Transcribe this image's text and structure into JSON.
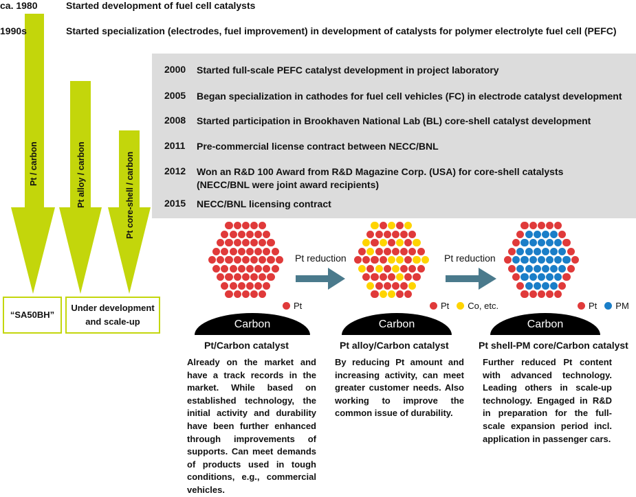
{
  "timeline_top": [
    {
      "year": "ca. 1980",
      "text": "Started development of fuel cell catalysts"
    },
    {
      "year": "1990s",
      "text": "Started specialization (electrodes, fuel improvement) in development of catalysts for polymer electrolyte fuel cell (PEFC)"
    }
  ],
  "timeline_box": [
    {
      "year": "2000",
      "text": "Started full-scale PEFC catalyst development in project laboratory"
    },
    {
      "year": "2005",
      "text": "Began specialization in cathodes for fuel cell vehicles (FC) in electrode catalyst development"
    },
    {
      "year": "2008",
      "text": "Started participation in Brookhaven National Lab (BL) core-shell catalyst development"
    },
    {
      "year": "2011",
      "text": "Pre-commercial license contract between NECC/BNL"
    },
    {
      "year": "2012",
      "text": "Won an R&D 100 Award from R&D Magazine Corp. (USA) for core-shell catalysts",
      "text2": "(NECC/BNL were joint award recipients)"
    },
    {
      "year": "2015",
      "text": "NECC/BNL licensing contract"
    }
  ],
  "arrows": [
    {
      "label": "Pt / carbon"
    },
    {
      "label": "Pt alloy / carbon"
    },
    {
      "label": "Pt core-shell / carbon"
    }
  ],
  "outcomes": [
    {
      "label": "“SA50BH”"
    },
    {
      "label_line1": "Under development",
      "label_line2": "and scale-up"
    }
  ],
  "flow": {
    "step_label_1": "Pt reduction",
    "step_label_2": "Pt reduction"
  },
  "catalysts": [
    {
      "title": "Pt/Carbon catalyst",
      "support": "Carbon",
      "legend": [
        {
          "label": "Pt",
          "color": "#e03a3a"
        }
      ],
      "description": "Already on the market and have a track records in the market. While based on established technology, the initial activity and durability have been further enhanced through improvements of supports. Can meet demands of products used in tough conditions, e.g., commercial vehicles."
    },
    {
      "title": "Pt alloy/Carbon catalyst",
      "support": "Carbon",
      "legend": [
        {
          "label": "Pt",
          "color": "#e03a3a"
        },
        {
          "label": "Co, etc.",
          "color": "#ffd400"
        }
      ],
      "description": "By reducing Pt amount and increasing activity, can meet greater customer needs. Also working to improve the common issue of durability."
    },
    {
      "title": "Pt shell-PM core/Carbon catalyst",
      "support": "Carbon",
      "legend": [
        {
          "label": "Pt",
          "color": "#e03a3a"
        },
        {
          "label": "PM",
          "color": "#1a7ec8"
        }
      ],
      "description": "Further reduced Pt content with advanced technology. Leading others in scale-up technology. Engaged in R&D in preparation for the full-scale expansion period incl. application in passenger cars."
    }
  ],
  "colors": {
    "arrow_green": "#c3d60b",
    "flow_arrow": "#4a7a8c",
    "pt_red": "#e03a3a",
    "co_yellow": "#ffd400",
    "pm_blue": "#1a7ec8",
    "box_gray": "#dcdcdc"
  }
}
